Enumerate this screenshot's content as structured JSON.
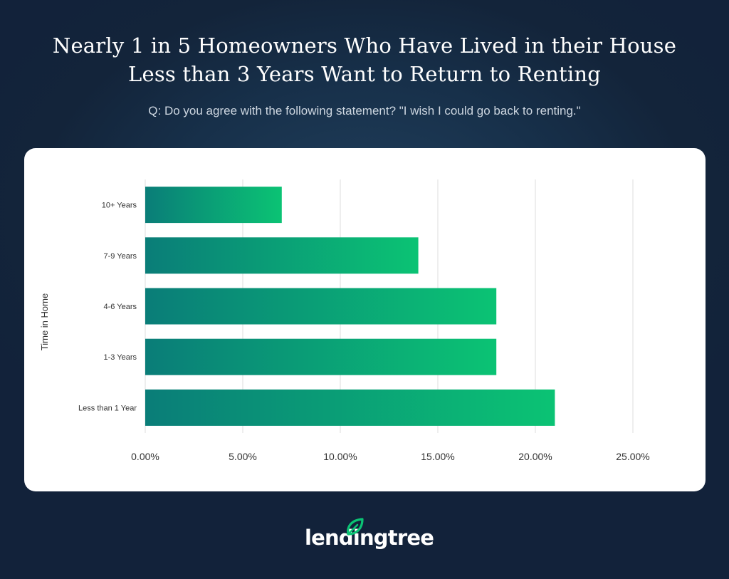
{
  "header": {
    "title_line1": "Nearly 1 in 5 Homeowners Who Have Lived in their House",
    "title_line2": "Less than 3 Years Want to Return to Renting",
    "subtitle": "Q: Do you agree with the following statement? \"I wish I could go back to renting.\""
  },
  "brand": {
    "name": "lendingtree",
    "accent": "#0bc374"
  },
  "colors": {
    "bar_start": "#0a7d78",
    "bar_end": "#0bc374",
    "grid": "#dedede",
    "text": "#333333"
  },
  "chart_data": {
    "type": "bar",
    "orientation": "horizontal",
    "categories": [
      "10+ Years",
      "7-9 Years",
      "4-6 Years",
      "1-3 Years",
      "Less than 1 Year"
    ],
    "values": [
      7,
      14,
      18,
      18,
      21
    ],
    "ylabel": "Time in Home",
    "xlim": [
      0,
      25
    ],
    "x_ticks": [
      0,
      5,
      10,
      15,
      20,
      25
    ],
    "x_tick_labels": [
      "0.00%",
      "5.00%",
      "10.00%",
      "15.00%",
      "20.00%",
      "25.00%"
    ],
    "grid": true
  }
}
